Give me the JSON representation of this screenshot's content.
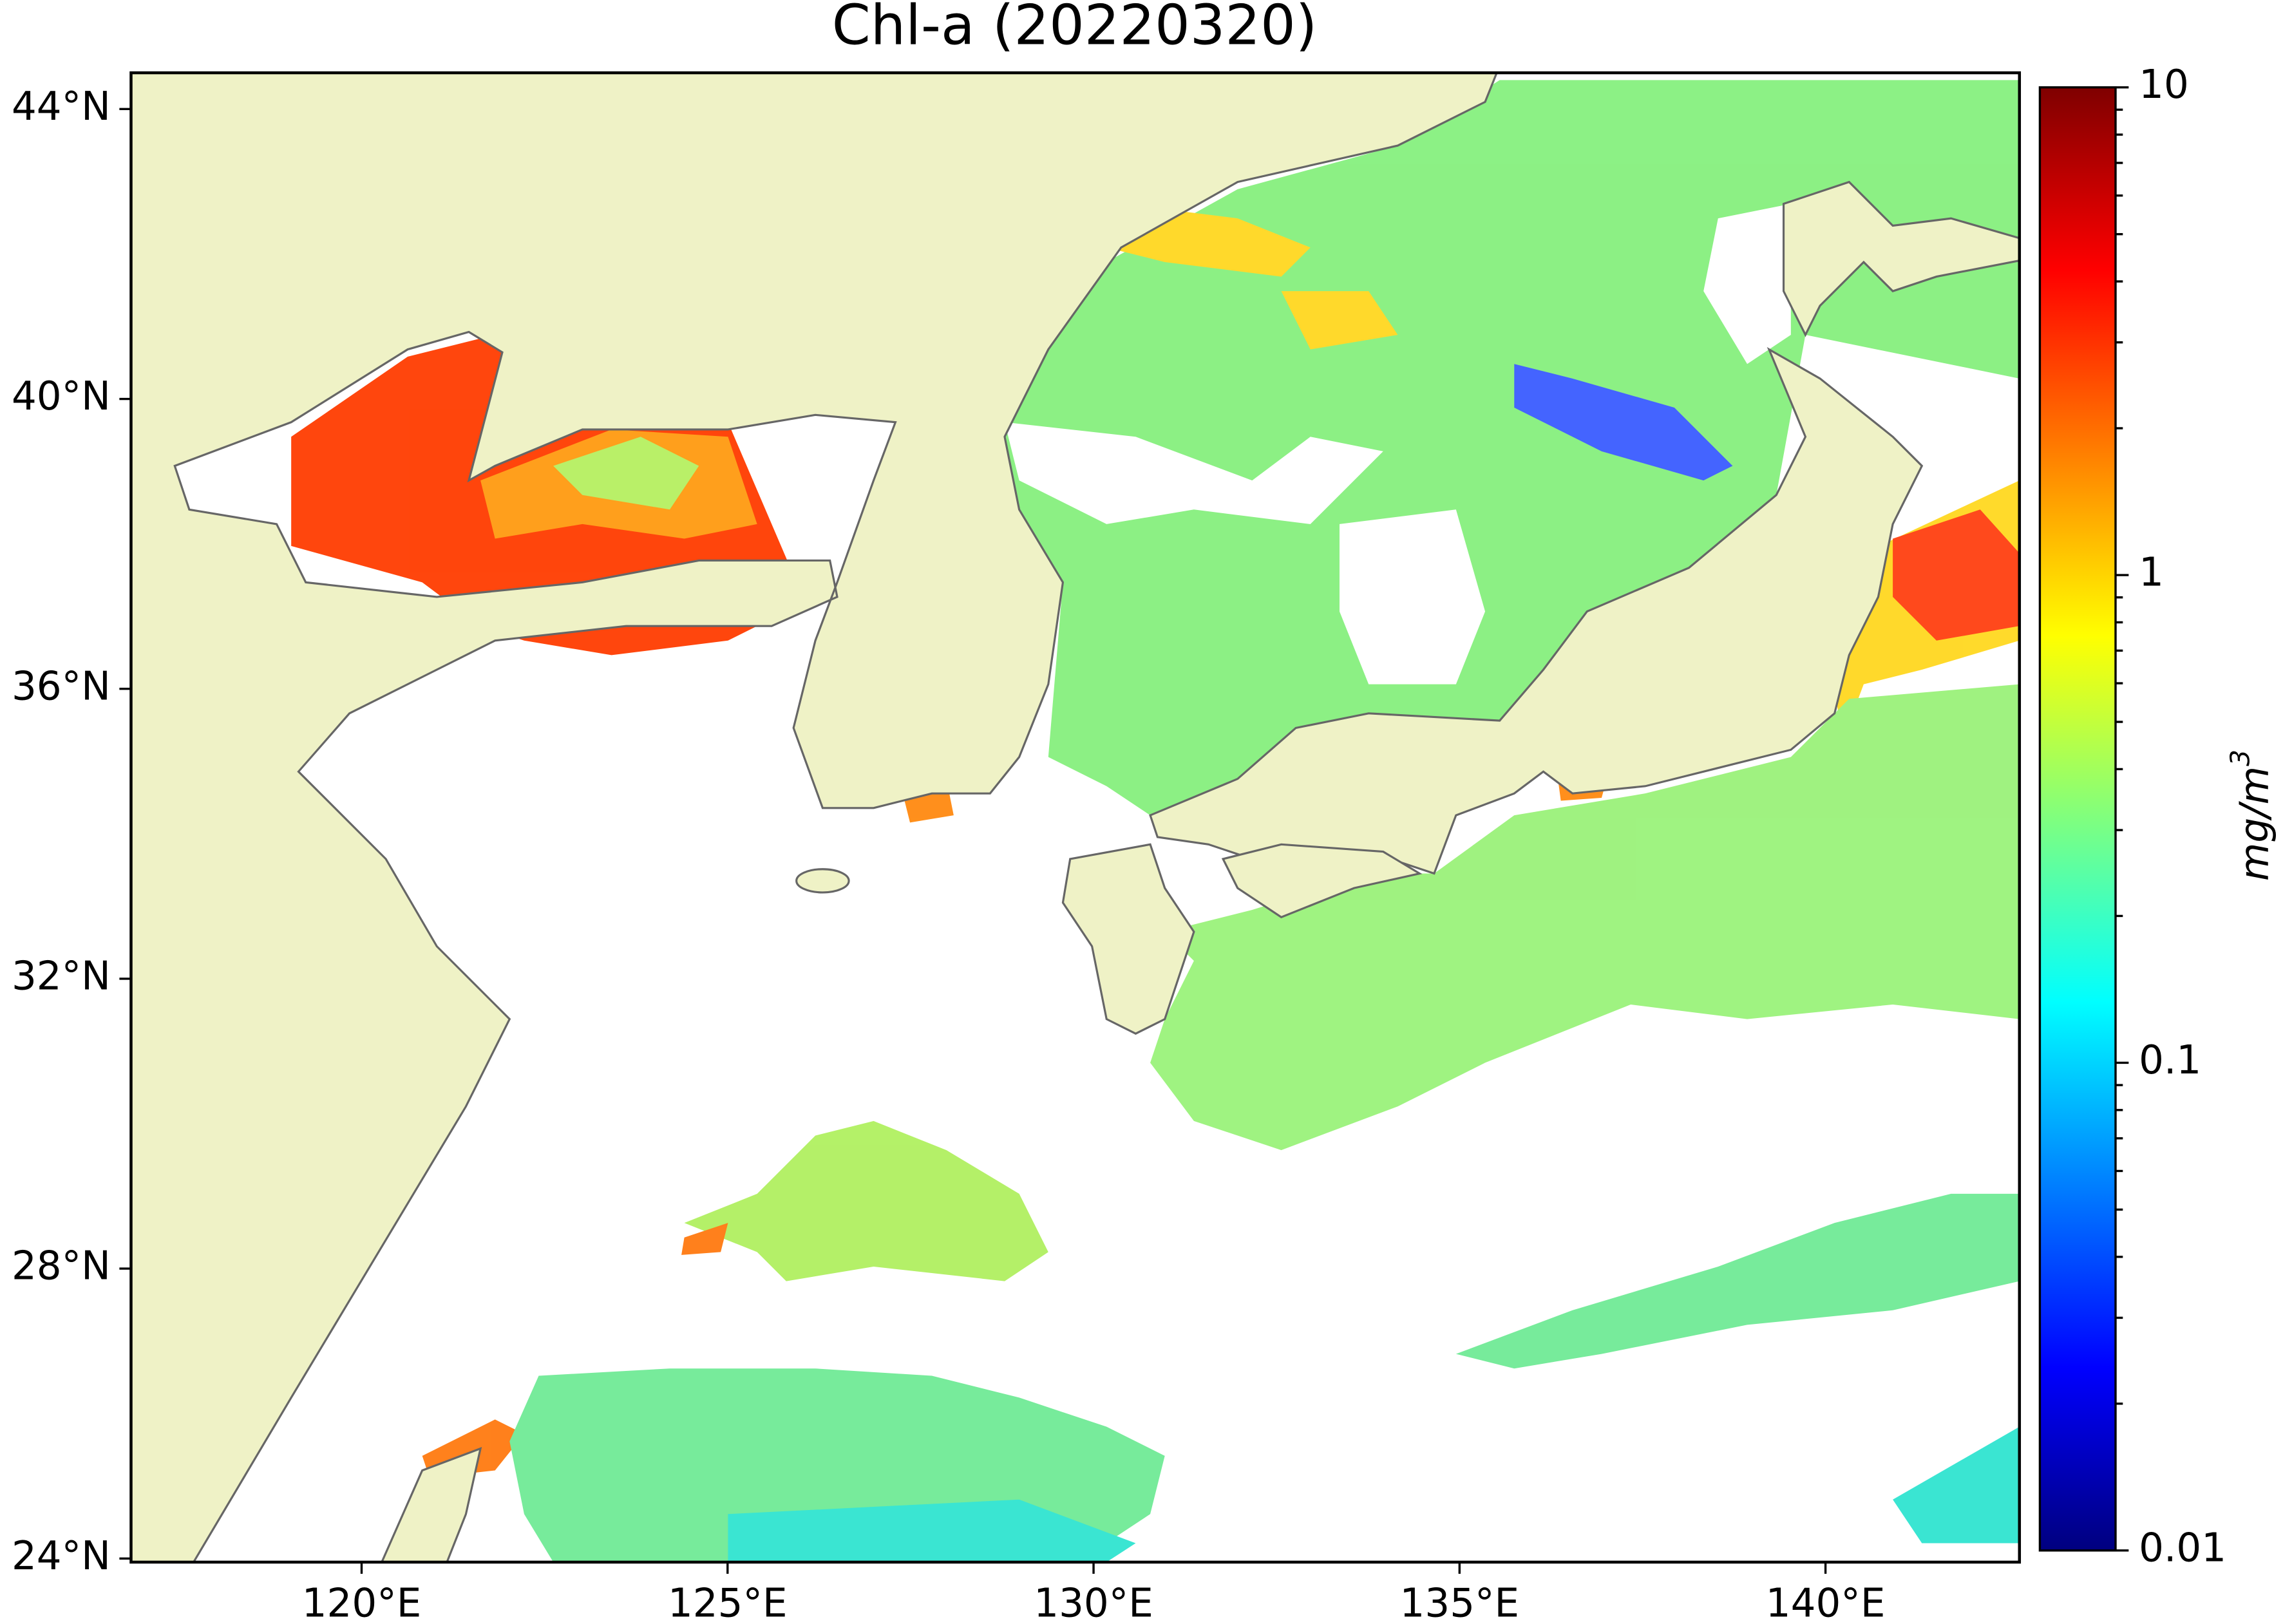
{
  "chart_data": {
    "type": "map",
    "title": "Chl-a (20220320)",
    "xlim": [
      116.85,
      142.65
    ],
    "ylim": [
      23.95,
      44.5
    ],
    "xticks": [
      {
        "value": 120,
        "label": "120°E"
      },
      {
        "value": 125,
        "label": "125°E"
      },
      {
        "value": 130,
        "label": "130°E"
      },
      {
        "value": 135,
        "label": "135°E"
      },
      {
        "value": 140,
        "label": "140°E"
      }
    ],
    "yticks": [
      {
        "value": 24,
        "label": "24°N"
      },
      {
        "value": 28,
        "label": "28°N"
      },
      {
        "value": 32,
        "label": "32°N"
      },
      {
        "value": 36,
        "label": "36°N"
      },
      {
        "value": 40,
        "label": "40°N"
      },
      {
        "value": 44,
        "label": "44°N"
      }
    ],
    "colorbar": {
      "label": "mg/m",
      "label_superscript": "3",
      "scale": "log",
      "lim": [
        0.01,
        10
      ],
      "ticks": [
        0.01,
        0.1,
        1,
        10
      ],
      "colormap": [
        "#00007f",
        "#0000ff",
        "#007fff",
        "#00ffff",
        "#7fff7f",
        "#ffff00",
        "#ff7f00",
        "#ff0000",
        "#7f0000"
      ]
    }
  }
}
